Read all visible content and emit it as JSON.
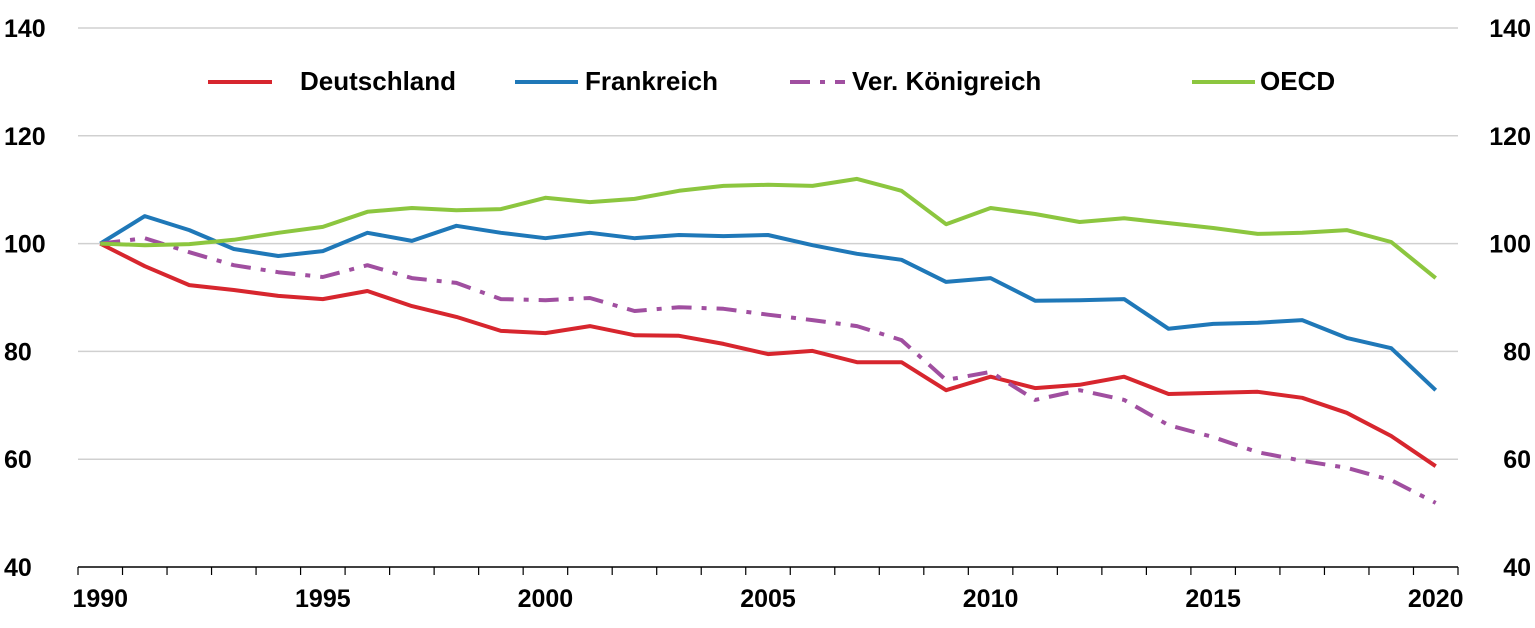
{
  "chart_data": {
    "type": "line",
    "title": "",
    "xlabel": "",
    "ylabel": "",
    "ylim": [
      40,
      140
    ],
    "yticks": [
      40,
      60,
      80,
      100,
      120,
      140
    ],
    "x_tick_labels": [
      "1990",
      "1995",
      "2000",
      "2005",
      "2010",
      "2015",
      "2020"
    ],
    "grid": true,
    "legend_position": "top",
    "x": [
      1990,
      1991,
      1992,
      1993,
      1994,
      1995,
      1996,
      1997,
      1998,
      1999,
      2000,
      2001,
      2002,
      2003,
      2004,
      2005,
      2006,
      2007,
      2008,
      2009,
      2010,
      2011,
      2012,
      2013,
      2014,
      2015,
      2016,
      2017,
      2018,
      2019,
      2020
    ],
    "series": [
      {
        "name": "Deutschland",
        "color": "#d7262e",
        "dashed": false,
        "values": [
          100,
          95.8,
          92.3,
          91.4,
          90.3,
          89.7,
          91.2,
          88.4,
          86.4,
          83.8,
          83.4,
          84.7,
          83.0,
          82.9,
          81.4,
          79.5,
          80.1,
          78.0,
          78.0,
          72.8,
          75.3,
          73.2,
          73.8,
          75.3,
          72.1,
          72.3,
          72.5,
          71.4,
          68.6,
          64.3,
          58.7
        ]
      },
      {
        "name": "Frankreich",
        "color": "#1f78b8",
        "dashed": false,
        "values": [
          100,
          105.1,
          102.5,
          99.0,
          97.7,
          98.6,
          102.0,
          100.5,
          103.3,
          102.0,
          101.0,
          102.0,
          101.0,
          101.6,
          101.4,
          101.6,
          99.7,
          98.1,
          97.0,
          92.9,
          93.6,
          89.4,
          89.5,
          89.7,
          84.2,
          85.1,
          85.3,
          85.8,
          82.5,
          80.6,
          72.8
        ]
      },
      {
        "name": "Ver. Königreich",
        "color": "#a04fa0",
        "dashed": true,
        "values": [
          100,
          101.0,
          98.4,
          96.0,
          94.7,
          93.8,
          96.0,
          93.6,
          92.7,
          89.7,
          89.5,
          89.9,
          87.5,
          88.2,
          87.9,
          86.8,
          85.8,
          84.7,
          82.1,
          74.7,
          76.2,
          71.0,
          72.8,
          71.0,
          66.3,
          64.1,
          61.3,
          59.7,
          58.4,
          56.1,
          51.9
        ]
      },
      {
        "name": "OECD",
        "color": "#8cc63f",
        "dashed": false,
        "values": [
          100,
          99.7,
          99.9,
          100.7,
          102.0,
          103.1,
          105.9,
          106.6,
          106.2,
          106.4,
          108.5,
          107.7,
          108.3,
          109.8,
          110.7,
          110.9,
          110.7,
          112.0,
          109.8,
          103.6,
          106.6,
          105.5,
          104.0,
          104.7,
          103.8,
          102.9,
          101.8,
          102.0,
          102.5,
          100.3,
          93.6
        ]
      }
    ]
  }
}
